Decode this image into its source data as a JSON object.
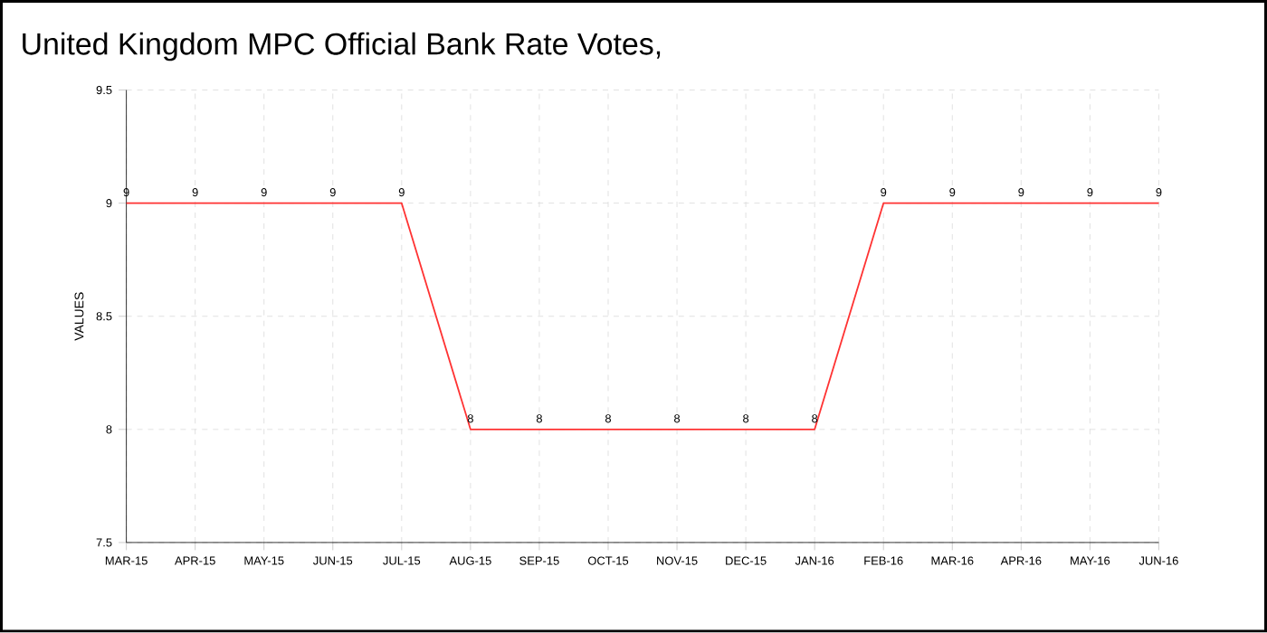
{
  "chart_data": {
    "type": "line",
    "title": "United Kingdom MPC Official Bank Rate Votes,",
    "ylabel": "VALUES",
    "categories": [
      "MAR-15",
      "APR-15",
      "MAY-15",
      "JUN-15",
      "JUL-15",
      "AUG-15",
      "SEP-15",
      "OCT-15",
      "NOV-15",
      "DEC-15",
      "JAN-16",
      "FEB-16",
      "MAR-16",
      "APR-16",
      "MAY-16",
      "JUN-16"
    ],
    "series": [
      {
        "color": "#ff3333",
        "values": [
          9,
          9,
          9,
          9,
          9,
          8,
          8,
          8,
          8,
          8,
          8,
          9,
          9,
          9,
          9,
          9
        ]
      }
    ],
    "ylim": [
      7.5,
      9.5
    ],
    "yticks": [
      7.5,
      8,
      8.5,
      9,
      9.5
    ],
    "grid": true,
    "data_labels": true,
    "marker": "none",
    "line_style": "solid"
  }
}
